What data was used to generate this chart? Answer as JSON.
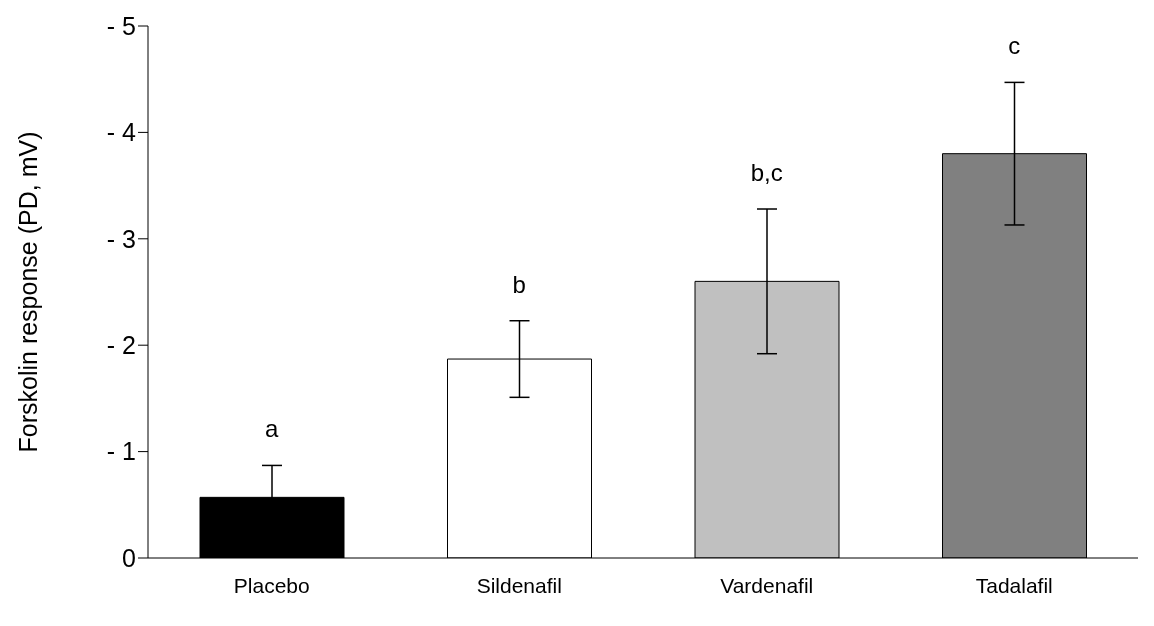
{
  "chart_data": {
    "type": "bar",
    "ylabel": "Forskolin response  (PD, mV)",
    "categories": [
      "Placebo",
      "Sildenafil",
      "Vardenafil",
      "Tadalafil"
    ],
    "values": [
      -0.57,
      -1.87,
      -2.6,
      -3.8
    ],
    "errors": [
      0.3,
      0.36,
      0.68,
      0.67
    ],
    "colors": [
      "#000000",
      "#ffffff",
      "#c0c0c0",
      "#808080"
    ],
    "ylim": [
      0,
      -5
    ],
    "yticks": [
      0,
      {
        "value": -1,
        "label": "- 1"
      },
      {
        "value": -2,
        "label": "- 2"
      },
      {
        "value": -3,
        "label": "- 3"
      },
      {
        "value": -4,
        "label": "- 4"
      },
      {
        "value": -5,
        "label": "- 5"
      }
    ],
    "grid": false,
    "annotations": [
      "a",
      "b",
      "b,c",
      "c"
    ]
  }
}
